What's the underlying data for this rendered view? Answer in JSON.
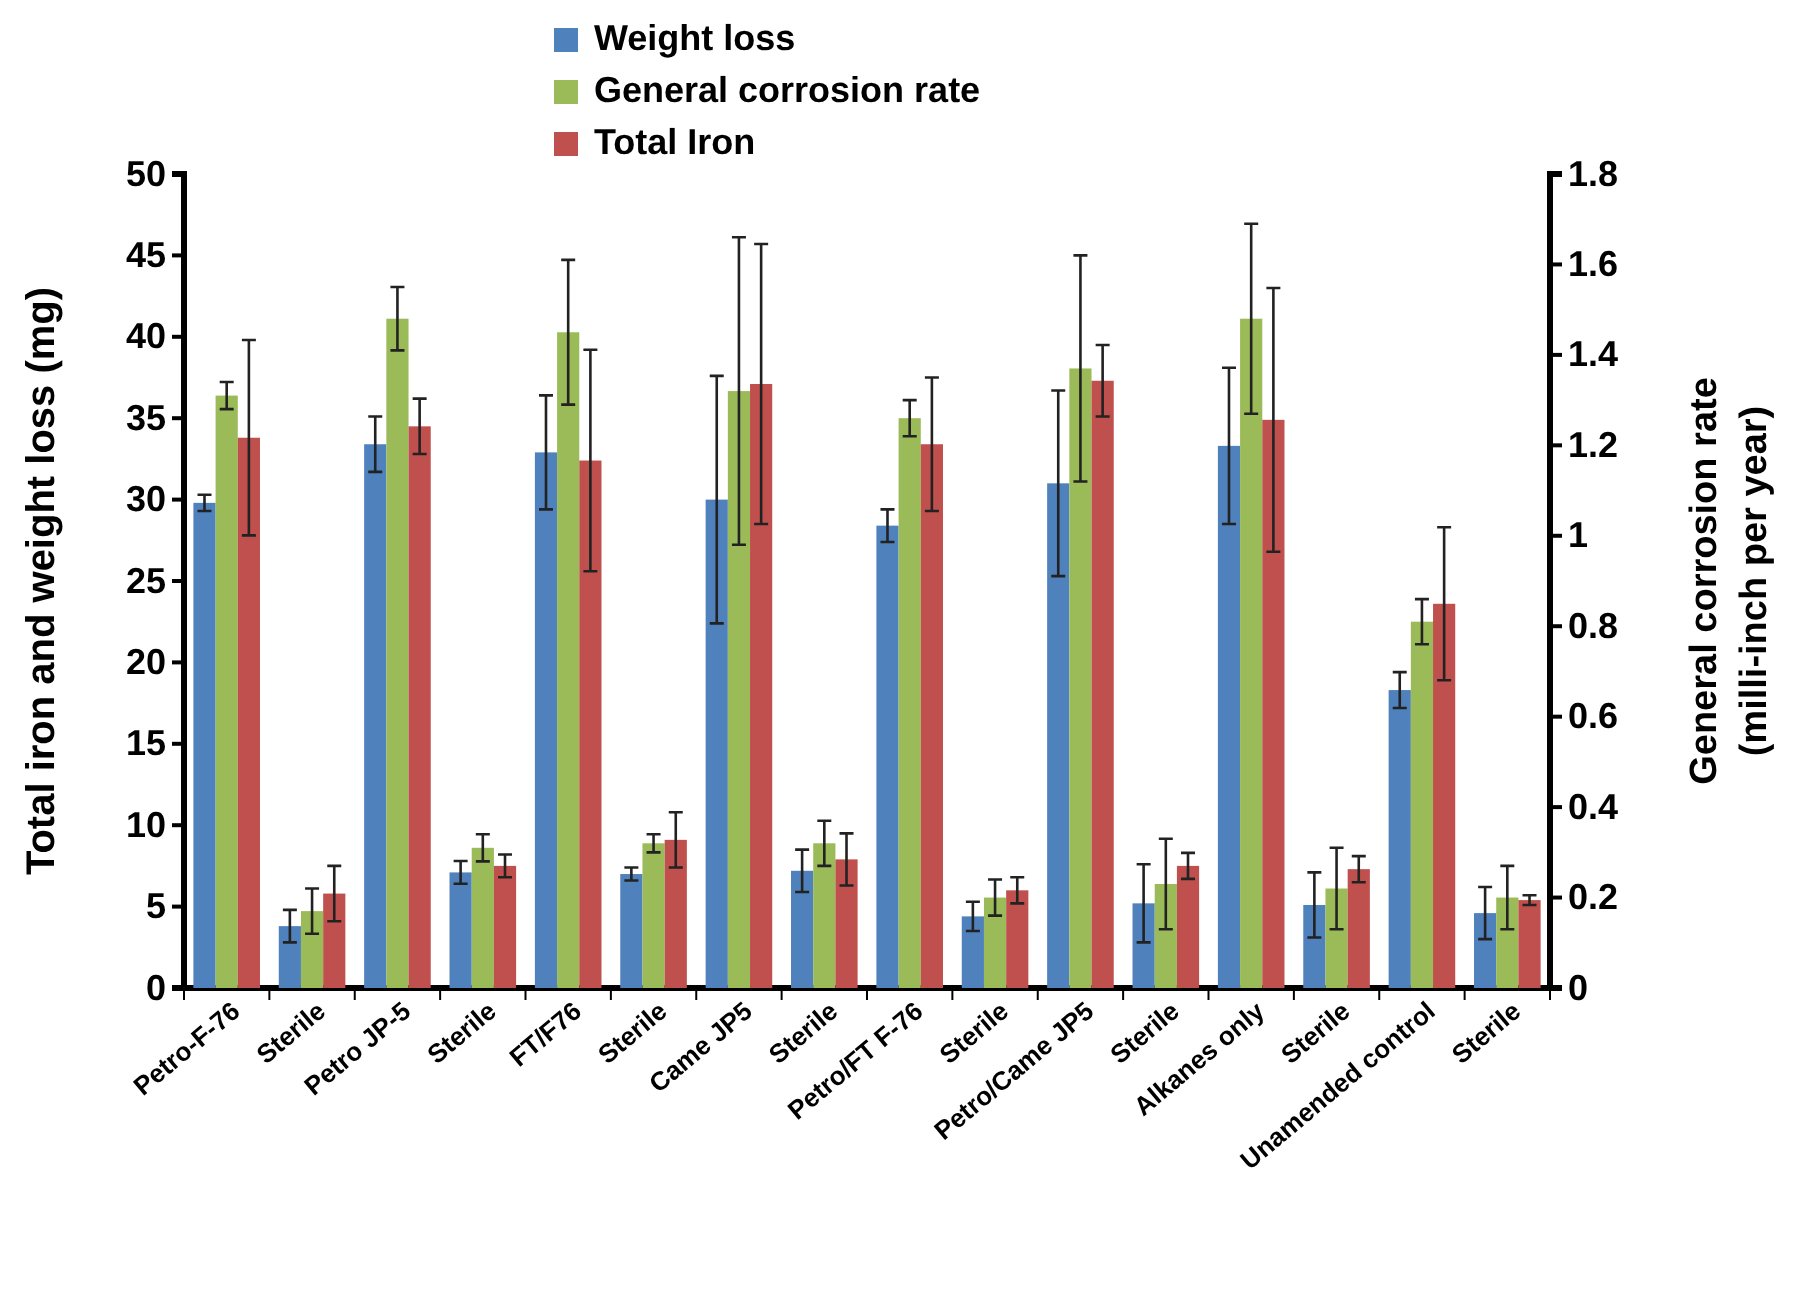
{
  "chart_data": {
    "type": "bar",
    "ylabel": "Total iron and weight loss  (mg)",
    "y2label": "General corrosion rate\n(milli-inch per year)",
    "categories": [
      "Petro-F-76",
      "Sterile",
      "Petro JP-5",
      "Sterile",
      "FT/F76",
      "Sterile",
      "Came JP5",
      "Sterile",
      "Petro/FT F-76",
      "Sterile",
      "Petro/Came JP5",
      "Sterile",
      "Alkanes only",
      "Sterile",
      "Unamended control",
      "Sterile"
    ],
    "series": [
      {
        "name": "Weight loss",
        "color": "#4f81bd",
        "values": [
          29.8,
          3.8,
          33.4,
          7.1,
          32.9,
          7.0,
          30.0,
          7.2,
          28.4,
          4.4,
          31.0,
          5.2,
          33.3,
          5.1,
          18.3,
          4.6
        ],
        "errors": [
          0.5,
          1.0,
          1.7,
          0.7,
          3.5,
          0.4,
          7.6,
          1.3,
          1.0,
          0.9,
          5.7,
          2.4,
          4.8,
          2.0,
          1.1,
          1.6
        ]
      },
      {
        "name": "General corrosion rate",
        "color": "#9bbb59",
        "axis": "y2",
        "values": [
          1.31,
          0.17,
          1.48,
          0.31,
          1.45,
          0.32,
          1.32,
          0.32,
          1.26,
          0.2,
          1.37,
          0.23,
          1.48,
          0.22,
          0.81,
          0.2
        ],
        "errors": [
          0.03,
          0.05,
          0.07,
          0.03,
          0.16,
          0.02,
          0.34,
          0.05,
          0.04,
          0.04,
          0.25,
          0.1,
          0.21,
          0.09,
          0.05,
          0.07
        ]
      },
      {
        "name": "Total Iron",
        "color": "#c0504d",
        "values": [
          33.8,
          5.8,
          34.5,
          7.5,
          32.4,
          9.1,
          37.1,
          7.9,
          33.4,
          6.0,
          37.3,
          7.5,
          34.9,
          7.3,
          23.6,
          5.4
        ],
        "errors": [
          6.0,
          1.7,
          1.7,
          0.7,
          6.8,
          1.7,
          8.6,
          1.6,
          4.1,
          0.8,
          2.2,
          0.8,
          8.1,
          0.8,
          4.7,
          0.3
        ]
      }
    ],
    "ylim": [
      0,
      50
    ],
    "yticks": [
      0,
      5,
      10,
      15,
      20,
      25,
      30,
      35,
      40,
      45,
      50
    ],
    "y2lim": [
      0,
      1.8
    ],
    "y2ticks": [
      0,
      0.2,
      0.4,
      0.6,
      0.8,
      1,
      1.2,
      1.4,
      1.6,
      1.8
    ],
    "legend": "top",
    "grid": false
  }
}
